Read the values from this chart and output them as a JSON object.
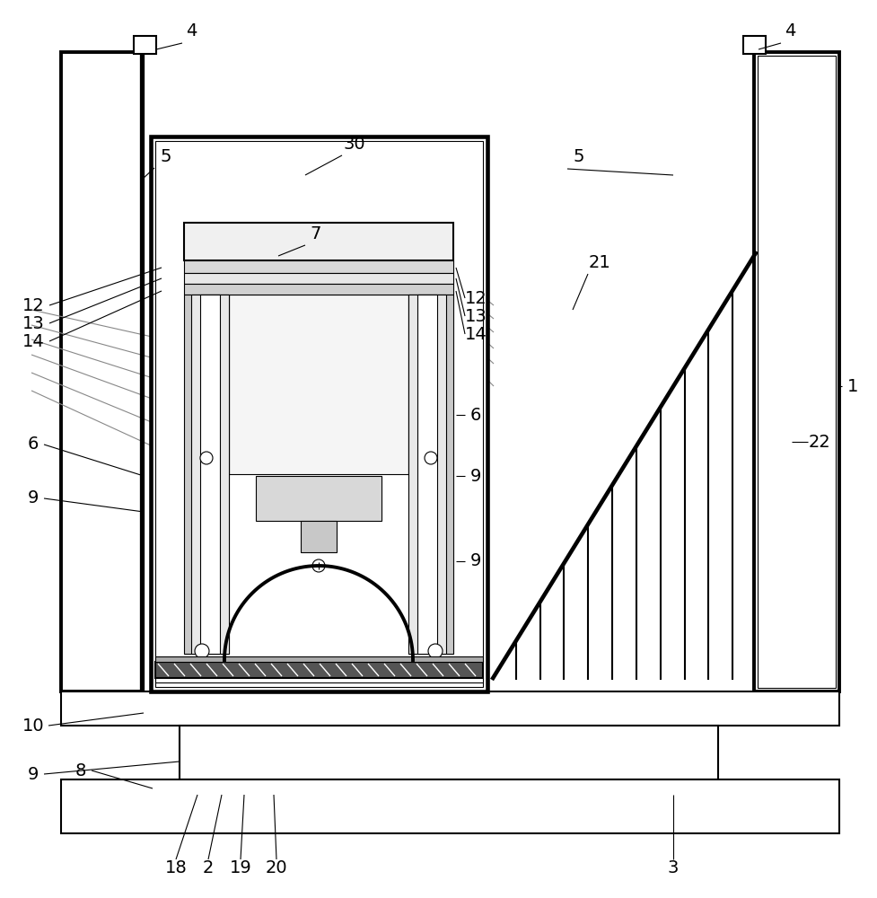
{
  "bg_color": "#ffffff",
  "lc": "#000000",
  "lw_thick": 2.8,
  "lw_med": 1.5,
  "lw_thin": 0.8,
  "figsize": [
    9.77,
    10.0
  ],
  "dpi": 100,
  "lfs": 14
}
